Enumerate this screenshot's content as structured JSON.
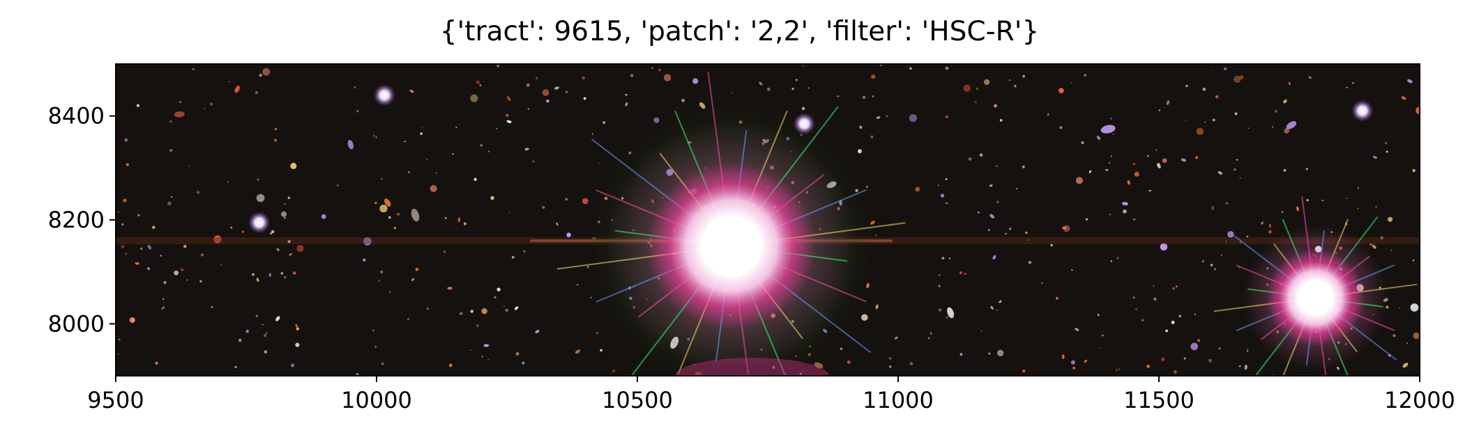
{
  "title": "{'tract': 9615, 'patch': '2,2', 'filter': 'HSC-R'}",
  "image": {
    "description_free": true,
    "x_range": [
      9500,
      12000
    ],
    "y_range": [
      7900,
      8500
    ],
    "x_ticks": [
      "9500",
      "10000",
      "10500",
      "11000",
      "11500",
      "12000"
    ],
    "y_ticks": [
      "8400",
      "8200",
      "8000"
    ],
    "x_tick_values": [
      9500,
      10000,
      10500,
      11000,
      11500,
      12000
    ],
    "y_tick_values": [
      8400,
      8200,
      8000
    ],
    "colors": {
      "sky": "#15110e",
      "frame": "#000000"
    },
    "bright_stars": [
      {
        "x": 10680,
        "y": 8150,
        "kind": "saturated"
      },
      {
        "x": 11800,
        "y": 8050,
        "kind": "saturated"
      },
      {
        "x": 10015,
        "y": 8440,
        "kind": "star"
      },
      {
        "x": 10820,
        "y": 8385,
        "kind": "star"
      },
      {
        "x": 11890,
        "y": 8410,
        "kind": "star"
      },
      {
        "x": 9775,
        "y": 8195,
        "kind": "star"
      }
    ]
  }
}
